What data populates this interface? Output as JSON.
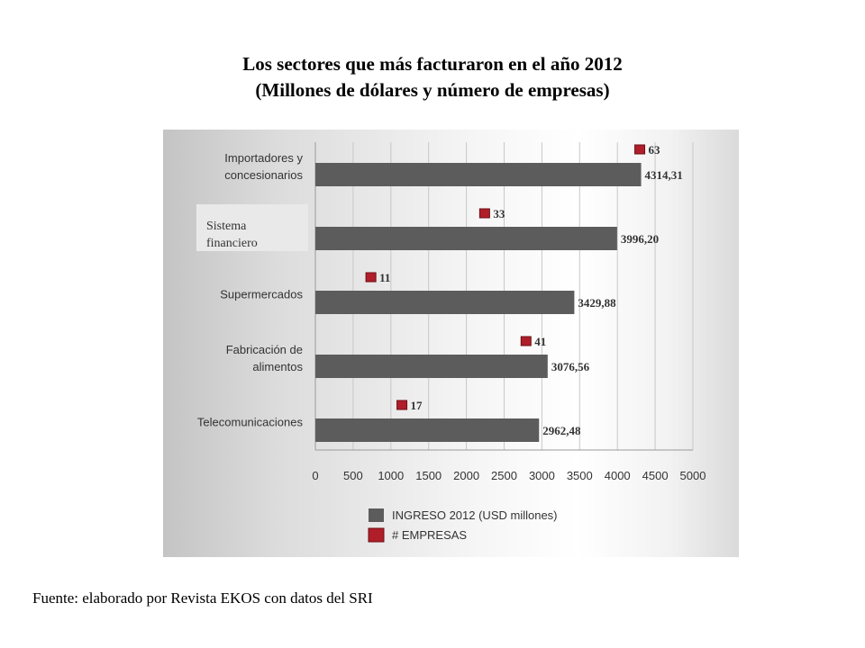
{
  "title": {
    "line1": "Los sectores que más facturaron en el año 2012",
    "line2": "(Millones de dólares y número de empresas)"
  },
  "source": "Fuente: elaborado por Revista EKOS con datos del SRI",
  "colors": {
    "bar": "#5c5c5c",
    "marker": "#b01e2a",
    "marker_edge": "#6e0f15",
    "axis": "#9a9a9a",
    "grid": "#c8c8c8"
  },
  "chart_data": {
    "type": "bar",
    "orientation": "horizontal",
    "categories": [
      [
        "Importadores y",
        "concesionarios"
      ],
      [
        "Sistema",
        "financiero"
      ],
      [
        "Supermercados"
      ],
      [
        "Fabricación de",
        "alimentos"
      ],
      [
        "Telecomunicaciones"
      ]
    ],
    "series": [
      {
        "name": "INGRESO 2012 (USD millones)",
        "values": [
          4314.31,
          3996.2,
          3429.88,
          3076.56,
          2962.48
        ],
        "labels": [
          "4314,31",
          "3996,20",
          "3429,88",
          "3076,56",
          "2962,48"
        ]
      },
      {
        "name": "# EMPRESAS",
        "values": [
          63,
          33,
          11,
          41,
          17
        ],
        "labels": [
          "63",
          "33",
          "11",
          "41",
          "17"
        ]
      }
    ],
    "xlim": [
      0,
      5000
    ],
    "xticks": [
      "0",
      "500",
      "1000",
      "1500",
      "2000",
      "2500",
      "3000",
      "3500",
      "4000",
      "4500",
      "5000"
    ],
    "legend": "bottom"
  }
}
